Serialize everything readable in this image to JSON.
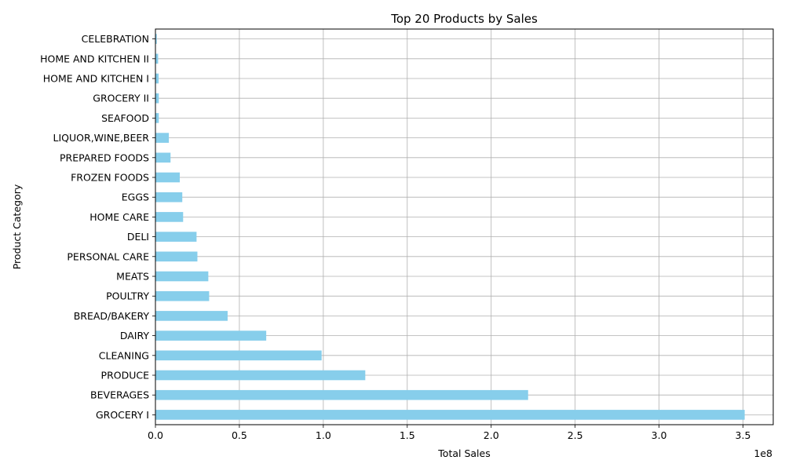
{
  "chart_data": {
    "type": "bar",
    "orientation": "horizontal",
    "title": "Top 20 Products by Sales",
    "xlabel": "Total Sales",
    "ylabel": "Product Category",
    "x_offset_label": "1e8",
    "x_scale": 100000000,
    "xlim": [
      0,
      368000000
    ],
    "x_ticks": [
      0,
      50000000,
      100000000,
      150000000,
      200000000,
      250000000,
      300000000,
      350000000
    ],
    "x_tick_labels": [
      "0.0",
      "0.5",
      "1.0",
      "1.5",
      "2.0",
      "2.5",
      "3.0",
      "3.5"
    ],
    "grid": true,
    "bar_color": "#87ceeb",
    "categories": [
      "GROCERY I",
      "BEVERAGES",
      "PRODUCE",
      "CLEANING",
      "DAIRY",
      "BREAD/BAKERY",
      "POULTRY",
      "MEATS",
      "PERSONAL CARE",
      "DELI",
      "HOME CARE",
      "EGGS",
      "FROZEN FOODS",
      "PREPARED FOODS",
      "LIQUOR,WINE,BEER",
      "SEAFOOD",
      "GROCERY II",
      "HOME AND KITCHEN I",
      "HOME AND KITCHEN II",
      "CELEBRATION"
    ],
    "values": [
      351000000,
      222000000,
      125000000,
      99000000,
      66000000,
      43000000,
      32000000,
      31500000,
      25000000,
      24500000,
      16500000,
      16000000,
      14500000,
      9000000,
      8000000,
      2000000,
      2000000,
      1900000,
      1600000,
      800000
    ]
  }
}
